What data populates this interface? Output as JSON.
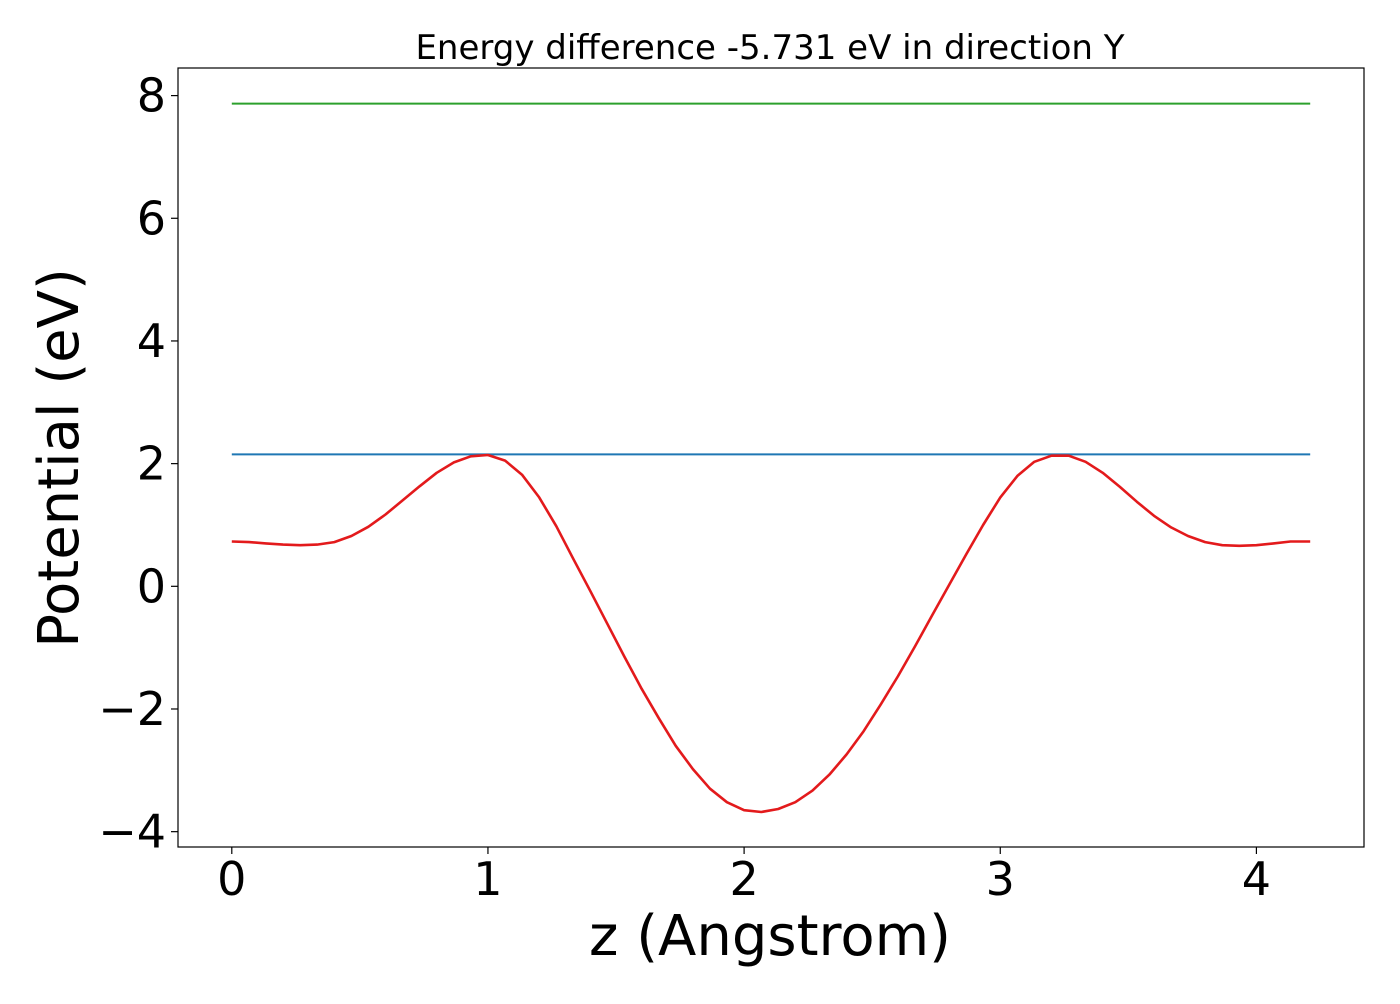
{
  "chart_data": {
    "type": "line",
    "title": "Energy difference -5.731 eV in direction Y",
    "xlabel": "z (Angstrom)",
    "ylabel": "Potential (eV)",
    "xlim": [
      -0.21,
      4.42
    ],
    "ylim": [
      -4.25,
      8.45
    ],
    "grid": false,
    "x_ticks": [
      0,
      1,
      2,
      3,
      4
    ],
    "x_tick_labels": [
      "0",
      "1",
      "2",
      "3",
      "4"
    ],
    "y_ticks": [
      -4,
      -2,
      0,
      2,
      4,
      6,
      8
    ],
    "y_tick_labels": [
      "−4",
      "−2",
      "0",
      "2",
      "4",
      "6",
      "8"
    ],
    "series": [
      {
        "color": "#2ca02c",
        "x": [
          0,
          4.21
        ],
        "y": [
          7.87,
          7.87
        ]
      },
      {
        "color": "#1f77b4",
        "x": [
          0,
          4.21
        ],
        "y": [
          2.15,
          2.15
        ]
      },
      {
        "color": "#e31a1c",
        "x": [
          0,
          0.067,
          0.133,
          0.2,
          0.267,
          0.333,
          0.4,
          0.467,
          0.533,
          0.6,
          0.667,
          0.733,
          0.8,
          0.867,
          0.933,
          1.0,
          1.067,
          1.133,
          1.2,
          1.267,
          1.333,
          1.4,
          1.467,
          1.533,
          1.6,
          1.667,
          1.733,
          1.8,
          1.867,
          1.933,
          2.0,
          2.067,
          2.133,
          2.2,
          2.267,
          2.333,
          2.4,
          2.467,
          2.533,
          2.6,
          2.667,
          2.733,
          2.8,
          2.867,
          2.933,
          3.0,
          3.067,
          3.133,
          3.2,
          3.267,
          3.333,
          3.4,
          3.467,
          3.533,
          3.6,
          3.667,
          3.733,
          3.8,
          3.867,
          3.933,
          4.0,
          4.067,
          4.133,
          4.21
        ],
        "y": [
          0.73,
          0.72,
          0.7,
          0.68,
          0.67,
          0.68,
          0.72,
          0.82,
          0.97,
          1.17,
          1.4,
          1.63,
          1.85,
          2.02,
          2.12,
          2.14,
          2.05,
          1.82,
          1.45,
          0.98,
          0.45,
          -0.08,
          -0.62,
          -1.15,
          -1.67,
          -2.15,
          -2.6,
          -2.98,
          -3.3,
          -3.52,
          -3.65,
          -3.68,
          -3.63,
          -3.52,
          -3.33,
          -3.07,
          -2.74,
          -2.36,
          -1.93,
          -1.47,
          -0.98,
          -0.48,
          0.02,
          0.52,
          1.0,
          1.45,
          1.8,
          2.03,
          2.13,
          2.13,
          2.03,
          1.85,
          1.62,
          1.38,
          1.15,
          0.96,
          0.82,
          0.72,
          0.67,
          0.66,
          0.67,
          0.7,
          0.73,
          0.73
        ]
      }
    ]
  }
}
